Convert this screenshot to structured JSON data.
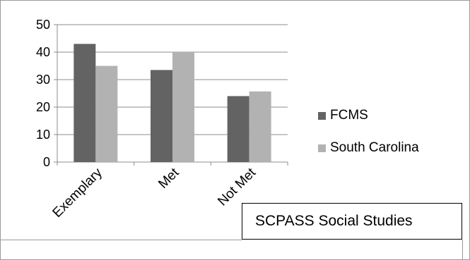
{
  "chart_data": {
    "type": "bar",
    "title": "SCPASS Social Studies",
    "categories": [
      "Exemplary",
      "Met",
      "Not Met"
    ],
    "series": [
      {
        "name": "FCMS",
        "values": [
          43,
          33.5,
          24
        ],
        "color": "#636363"
      },
      {
        "name": "South Carolina",
        "values": [
          35,
          40,
          25.7
        ],
        "color": "#b2b2b2"
      }
    ],
    "ylim": [
      0,
      50
    ],
    "yticks": [
      0,
      10,
      20,
      30,
      40,
      50
    ],
    "grid": true,
    "legend_position": "right",
    "xlabel": "",
    "ylabel": ""
  }
}
